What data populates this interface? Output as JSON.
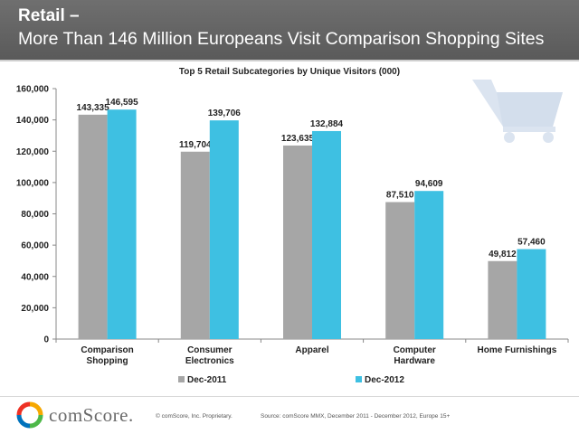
{
  "header": {
    "title": "Retail –",
    "subtitle": "More Than 146 Million Europeans Visit Comparison Shopping Sites"
  },
  "colors": {
    "header_bg": "#636363",
    "series1": "#a6a6a6",
    "series2": "#3ec0e2",
    "cart": "#dbe4f0"
  },
  "chart_data": {
    "type": "bar",
    "title": "Top 5 Retail Subcategories by Unique Visitors (000)",
    "categories": [
      [
        "Comparison",
        "Shopping"
      ],
      [
        "Consumer",
        "Electronics"
      ],
      [
        "Apparel"
      ],
      [
        "Computer",
        "Hardware"
      ],
      [
        "Home Furnishings"
      ]
    ],
    "series": [
      {
        "name": "Dec-2011",
        "values": [
          143335,
          119704,
          123635,
          87510,
          49812
        ],
        "labels": [
          "143,335",
          "119,704",
          "123,635",
          "87,510",
          "49,812"
        ]
      },
      {
        "name": "Dec-2012",
        "values": [
          146595,
          139706,
          132884,
          94609,
          57460
        ],
        "labels": [
          "146,595",
          "139,706",
          "132,884",
          "94,609",
          "57,460"
        ]
      }
    ],
    "yticks": [
      0,
      20000,
      40000,
      60000,
      80000,
      100000,
      120000,
      140000,
      160000
    ],
    "ytick_labels": [
      "0",
      "20,000",
      "40,000",
      "60,000",
      "80,000",
      "100,000",
      "120,000",
      "140,000",
      "160,000"
    ],
    "ylim": [
      0,
      160000
    ],
    "xlabel": "",
    "ylabel": "",
    "legend_position": "bottom"
  },
  "footer": {
    "logo_text": "comScore.",
    "copyright": "© comScore, Inc.   Proprietary.",
    "source": "Source: comScore MMX, December 2011 - December 2012, Europe 15+"
  }
}
